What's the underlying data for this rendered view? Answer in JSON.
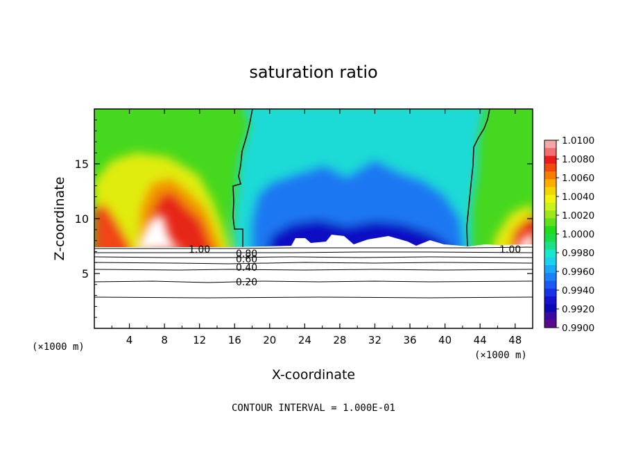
{
  "chart_data": {
    "type": "heatmap",
    "title": "saturation ratio",
    "xlabel": "X-coordinate",
    "ylabel": "Z-coordinate",
    "x_unit": "(×1000 m)",
    "z_unit": "(×1000 m)",
    "xlim": [
      0,
      50
    ],
    "ylim": [
      0,
      20
    ],
    "x_ticks": [
      4,
      8,
      12,
      16,
      20,
      24,
      28,
      32,
      36,
      40,
      44,
      48
    ],
    "y_ticks": [
      5,
      10,
      15
    ],
    "colorbar": {
      "levels": [
        "1.0100",
        "1.0080",
        "1.0060",
        "1.0040",
        "1.0020",
        "1.0000",
        "0.9980",
        "0.9960",
        "0.9940",
        "0.9920",
        "0.9900"
      ],
      "colors": [
        "#f5a6a6",
        "#f07070",
        "#e81c1c",
        "#f04a10",
        "#f57d00",
        "#fcae00",
        "#f2d600",
        "#f2f20a",
        "#ccf21c",
        "#9ee61c",
        "#5ee01c",
        "#22dc1c",
        "#1adc46",
        "#1ae08a",
        "#1ae6cc",
        "#1ad2f0",
        "#1aaaf5",
        "#1a82f5",
        "#1a5af0",
        "#1a32e6",
        "#1414cc",
        "#0a0ab4",
        "#3c0aa0",
        "#5a0a8c"
      ]
    },
    "contour_lines": [
      {
        "value": 1.0,
        "label": "1.00"
      },
      {
        "value": 0.8,
        "label": "0.80"
      },
      {
        "value": 0.6,
        "label": "0.60"
      },
      {
        "value": 0.4,
        "label": "0.40"
      },
      {
        "value": 0.2,
        "label": "0.20"
      }
    ],
    "saturation_line_x_km": [
      16.5,
      43.5
    ],
    "contour_interval_text": "CONTOUR INTERVAL = 1.000E-01"
  }
}
